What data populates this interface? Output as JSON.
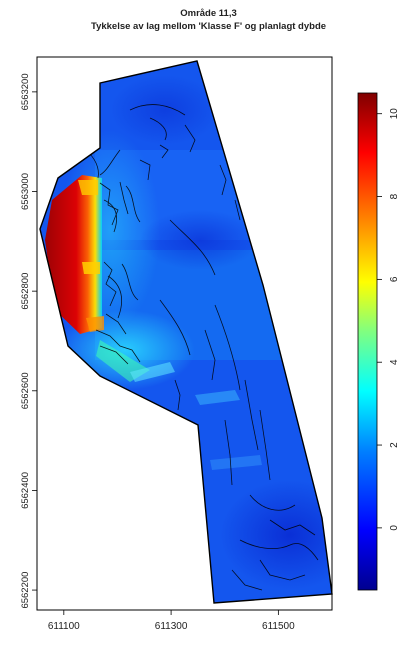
{
  "title": {
    "line1": "Område 11,3",
    "line2": "Tykkelse av lag mellom 'Klasse F' og planlagt dybde"
  },
  "x_axis": {
    "ticks": [
      {
        "value": 611100,
        "label": "611100"
      },
      {
        "value": 611300,
        "label": "611300"
      },
      {
        "value": 611500,
        "label": "611500"
      }
    ],
    "range": [
      611050,
      611600
    ]
  },
  "y_axis": {
    "ticks": [
      {
        "value": 6563200,
        "label": "6563200"
      },
      {
        "value": 6563000,
        "label": "6563000"
      },
      {
        "value": 6562800,
        "label": "6562800"
      },
      {
        "value": 6562600,
        "label": "6562600"
      },
      {
        "value": 6562400,
        "label": "6562400"
      },
      {
        "value": 6562200,
        "label": "6562200"
      }
    ],
    "range": [
      6562160,
      6563270
    ]
  },
  "colorbar": {
    "min": -1.5,
    "max": 10.5,
    "ticks": [
      {
        "value": 10,
        "label": "10"
      },
      {
        "value": 8,
        "label": "8"
      },
      {
        "value": 6,
        "label": "6"
      },
      {
        "value": 4,
        "label": "4"
      },
      {
        "value": 2,
        "label": "2"
      },
      {
        "value": 0,
        "label": "0"
      }
    ],
    "colors": [
      "#00008f",
      "#0000ff",
      "#0080ff",
      "#00ffff",
      "#80ff80",
      "#ffff00",
      "#ff8000",
      "#ff0000",
      "#800000"
    ]
  }
}
